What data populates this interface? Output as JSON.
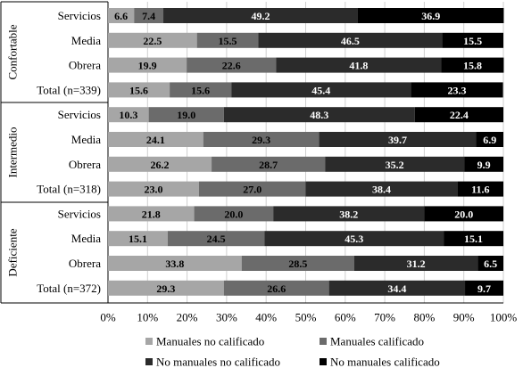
{
  "chart_data": {
    "type": "bar",
    "stacked": "percent",
    "orientation": "horizontal",
    "title": "",
    "xlabel": "",
    "ylabel": "",
    "xlim": [
      0,
      100
    ],
    "x_ticks": [
      "0%",
      "10%",
      "20%",
      "30%",
      "40%",
      "50%",
      "60%",
      "70%",
      "80%",
      "90%",
      "100%"
    ],
    "legend_position": "bottom",
    "groups": [
      {
        "name": "Confortable",
        "categories": [
          "Servicios",
          "Media",
          "Obrera",
          "Total (n=339)"
        ]
      },
      {
        "name": "Intermedio",
        "categories": [
          "Servicios",
          "Media",
          "Obrera",
          "Total (n=318)"
        ]
      },
      {
        "name": "Deficiente",
        "categories": [
          "Servicios",
          "Media",
          "Obrera",
          "Total (n=372)"
        ]
      }
    ],
    "series": [
      {
        "name": "Manuales no calificado",
        "color": "#a6a6a6",
        "label_color": "#000000",
        "values": [
          6.6,
          22.5,
          19.9,
          15.6,
          10.3,
          24.1,
          26.2,
          23.0,
          21.8,
          15.1,
          33.8,
          29.3
        ]
      },
      {
        "name": "Manuales calificado",
        "color": "#6b6b6b",
        "label_color": "#000000",
        "values": [
          7.4,
          15.5,
          22.6,
          15.6,
          19.0,
          29.3,
          28.7,
          27.0,
          20.0,
          24.5,
          28.5,
          26.6
        ]
      },
      {
        "name": "No manuales no calificado",
        "color": "#2b2b2b",
        "label_color": "#ffffff",
        "values": [
          49.2,
          46.5,
          41.8,
          45.4,
          48.3,
          39.7,
          35.2,
          38.4,
          38.2,
          45.3,
          31.2,
          34.4
        ]
      },
      {
        "name": "No manuales calificado",
        "color": "#000000",
        "label_color": "#ffffff",
        "values": [
          36.9,
          15.5,
          15.8,
          23.3,
          22.4,
          6.9,
          9.9,
          11.6,
          20.0,
          15.1,
          6.5,
          9.7
        ]
      }
    ]
  }
}
